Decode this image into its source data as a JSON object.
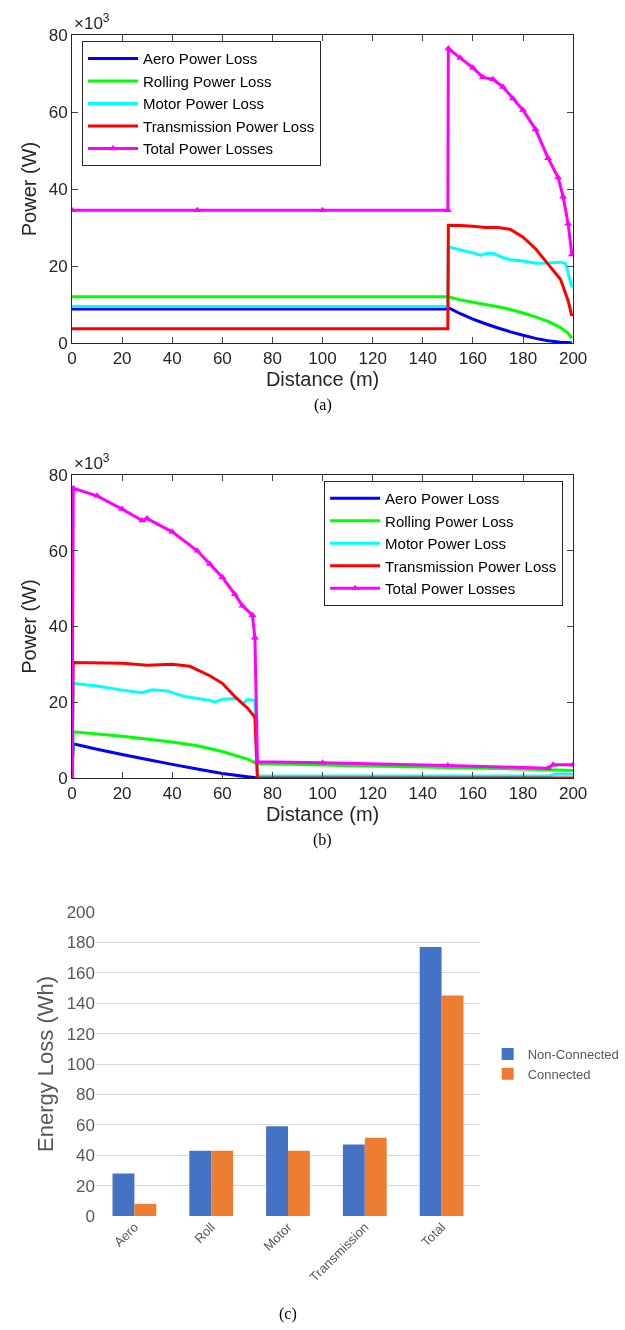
{
  "chart_data": [
    {
      "type": "line",
      "xlabel": "Distance (m)",
      "ylabel": "Power (W)",
      "annotations": [
        "×10$^{3}$",
        "(a)"
      ],
      "xlim": [
        0,
        200
      ],
      "xticks": [
        0,
        20,
        40,
        60,
        80,
        100,
        120,
        140,
        160,
        180,
        200
      ],
      "ylim": [
        0,
        80
      ],
      "yticks": [
        0,
        20,
        40,
        60,
        80
      ],
      "grid": false,
      "legend": "top left",
      "line_style": "solid",
      "series": [
        {
          "name": "Aero Power Loss",
          "color": "#0000ff",
          "x": [
            0,
            50,
            100,
            150,
            150.2,
            155,
            160,
            165,
            170,
            175,
            180,
            185,
            190,
            195,
            198,
            199.5
          ],
          "values": [
            8.8,
            8.8,
            8.8,
            8.8,
            9.2,
            7.6,
            6.2,
            5.0,
            3.9,
            2.9,
            2.0,
            1.2,
            0.6,
            0.2,
            0.1,
            0
          ]
        },
        {
          "name": "Rolling Power Loss",
          "color": "#00ff00",
          "x": [
            0,
            50,
            100,
            150,
            150.2,
            155,
            160,
            165,
            170,
            175,
            180,
            185,
            190,
            195,
            198,
            199.5
          ],
          "values": [
            12,
            12,
            12,
            12,
            12,
            11.2,
            10.6,
            10,
            9.4,
            8.7,
            7.8,
            6.8,
            5.6,
            4.0,
            2.5,
            1.2
          ]
        },
        {
          "name": "Motor Power Loss",
          "color": "#00ffff",
          "x": [
            0,
            50,
            100,
            150,
            150.2,
            155,
            160,
            163,
            165,
            168,
            172,
            175,
            180,
            185,
            190,
            195,
            197,
            199.5
          ],
          "values": [
            9.5,
            9.5,
            9.5,
            9.5,
            25,
            24.2,
            23.4,
            22.8,
            23.2,
            23.3,
            22.2,
            21.6,
            21.3,
            20.7,
            20.8,
            21,
            20.6,
            14.5
          ]
        },
        {
          "name": "Transmission Power Loss",
          "color": "#ff0000",
          "x": [
            0,
            50,
            100,
            150,
            150.2,
            155,
            160,
            165,
            170,
            175,
            180,
            185,
            190,
            195,
            198,
            199.5
          ],
          "values": [
            3.7,
            3.7,
            3.7,
            3.7,
            30.6,
            30.5,
            30.3,
            30.0,
            30.0,
            29.5,
            27.5,
            24.5,
            20.5,
            16.5,
            11,
            7
          ]
        },
        {
          "name": "Total Power Losses",
          "color": "#ff00ff",
          "marker": "triangle",
          "x": [
            0,
            50,
            100,
            150,
            150.2,
            155,
            160,
            164,
            168,
            172,
            176,
            180,
            185,
            190,
            194,
            196,
            198,
            199.5
          ],
          "values": [
            34.5,
            34.5,
            34.5,
            34.5,
            76.5,
            74,
            71.5,
            69,
            68.5,
            66.5,
            63.5,
            60.5,
            55.5,
            48,
            43,
            38,
            31,
            23
          ]
        }
      ]
    },
    {
      "type": "line",
      "xlabel": "Distance (m)",
      "ylabel": "Power (W)",
      "annotations": [
        "×10$^{3}$",
        "(b)"
      ],
      "xlim": [
        0,
        200
      ],
      "xticks": [
        0,
        20,
        40,
        60,
        80,
        100,
        120,
        140,
        160,
        180,
        200
      ],
      "ylim": [
        0,
        80
      ],
      "yticks": [
        0,
        20,
        40,
        60,
        80
      ],
      "grid": false,
      "legend": "top right",
      "line_style": "solid",
      "series": [
        {
          "name": "Aero Power Loss",
          "color": "#0000ff",
          "x": [
            0,
            0.5,
            10,
            20,
            30,
            40,
            50,
            60,
            70,
            74
          ],
          "values": [
            0,
            9,
            7.6,
            6.2,
            4.9,
            3.6,
            2.4,
            1.2,
            0.3,
            0
          ]
        },
        {
          "name": "Rolling Power Loss",
          "color": "#00ff00",
          "x": [
            0,
            0.5,
            20,
            40,
            50,
            60,
            70,
            74,
            75,
            100,
            150,
            190,
            200
          ],
          "values": [
            0,
            12.2,
            11,
            9.5,
            8.5,
            7,
            5,
            3.8,
            3.8,
            3.4,
            2.8,
            2.2,
            2.0
          ]
        },
        {
          "name": "Motor Power Loss",
          "color": "#00ffff",
          "x": [
            0,
            0.5,
            10,
            20,
            28,
            32,
            38,
            45,
            55,
            57,
            60,
            66,
            68,
            70,
            73,
            74,
            100,
            190,
            193,
            200
          ],
          "values": [
            0,
            25,
            24.3,
            23.2,
            22.5,
            23.3,
            23,
            21.5,
            20.5,
            20,
            20.8,
            21,
            19.5,
            20.7,
            20.5,
            0.5,
            0.5,
            0.5,
            1,
            1
          ]
        },
        {
          "name": "Transmission Power Loss",
          "color": "#ff0000",
          "x": [
            0,
            0.5,
            20,
            30,
            40,
            47,
            55,
            60,
            65,
            70,
            73,
            74,
            100,
            200
          ],
          "values": [
            0,
            30.5,
            30.3,
            29.8,
            30,
            29.5,
            27,
            25,
            21.5,
            18.5,
            16,
            0,
            0,
            0
          ]
        },
        {
          "name": "Total Power Losses",
          "color": "#ff00ff",
          "marker": "triangle",
          "x": [
            0,
            0.5,
            10,
            20,
            28,
            30,
            40,
            50,
            55,
            60,
            65,
            68,
            72,
            73,
            74,
            100,
            150,
            190,
            192,
            200
          ],
          "values": [
            0,
            76.5,
            74.5,
            71,
            68,
            68.5,
            65,
            60,
            56.5,
            53,
            48.5,
            45.5,
            43,
            37,
            4.3,
            4,
            3.3,
            2.6,
            3.5,
            3.5
          ]
        }
      ]
    },
    {
      "type": "bar",
      "ylabel": "Energy Loss (Wh)",
      "annotations": [
        "(c)"
      ],
      "categories": [
        "Aero",
        "Roll",
        "Motor",
        "Transmission",
        "Total"
      ],
      "ylim": [
        0,
        200
      ],
      "yticks": [
        0,
        20,
        40,
        60,
        80,
        100,
        120,
        140,
        160,
        180,
        200
      ],
      "grid": "y",
      "legend": "right",
      "series": [
        {
          "name": "Non-Connected",
          "color": "#4472c4",
          "values": [
            28,
            43,
            59,
            47,
            177
          ]
        },
        {
          "name": "Connected",
          "color": "#ed7d31",
          "values": [
            8,
            43,
            43,
            51.5,
            145
          ]
        }
      ]
    }
  ]
}
